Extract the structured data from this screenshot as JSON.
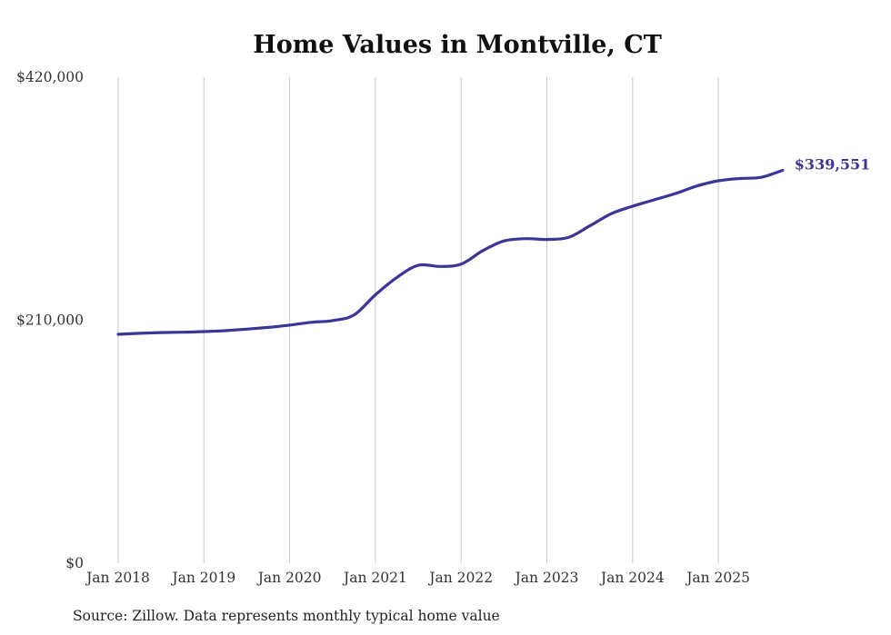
{
  "title": "Home Values in Montville, CT",
  "source_note": "Source: Zillow. Data represents monthly typical home value",
  "colors": {
    "line": "#3a3597",
    "grid": "#c9c9c9",
    "axis_text": "#333333",
    "title_text": "#111111",
    "background": "#ffffff"
  },
  "chart_data": {
    "type": "line",
    "title": "Home Values in Montville, CT",
    "unit": "USD",
    "xlabel": "",
    "ylabel": "",
    "ylim": [
      0,
      420000
    ],
    "grid": "vertical-only",
    "legend": "none",
    "source": "Zillow",
    "yticks": [
      {
        "value": 0,
        "label": "$0"
      },
      {
        "value": 210000,
        "label": "$210,000"
      },
      {
        "value": 420000,
        "label": "$420,000"
      }
    ],
    "xticks": [
      {
        "x": 2018,
        "label": "Jan 2018"
      },
      {
        "x": 2019,
        "label": "Jan 2019"
      },
      {
        "x": 2020,
        "label": "Jan 2020"
      },
      {
        "x": 2021,
        "label": "Jan 2021"
      },
      {
        "x": 2022,
        "label": "Jan 2022"
      },
      {
        "x": 2023,
        "label": "Jan 2023"
      },
      {
        "x": 2024,
        "label": "Jan 2024"
      },
      {
        "x": 2025,
        "label": "Jan 2025"
      }
    ],
    "series": [
      {
        "name": "Monthly typical home value",
        "color": "#3a3597",
        "points": [
          {
            "x": 2018.0,
            "y": 197800
          },
          {
            "x": 2018.25,
            "y": 198700
          },
          {
            "x": 2018.5,
            "y": 199300
          },
          {
            "x": 2018.75,
            "y": 199600
          },
          {
            "x": 2019.0,
            "y": 200200
          },
          {
            "x": 2019.25,
            "y": 201000
          },
          {
            "x": 2019.5,
            "y": 202300
          },
          {
            "x": 2019.75,
            "y": 203800
          },
          {
            "x": 2020.0,
            "y": 205800
          },
          {
            "x": 2020.25,
            "y": 208200
          },
          {
            "x": 2020.5,
            "y": 209700
          },
          {
            "x": 2020.75,
            "y": 214500
          },
          {
            "x": 2021.0,
            "y": 232000
          },
          {
            "x": 2021.25,
            "y": 247000
          },
          {
            "x": 2021.5,
            "y": 257500
          },
          {
            "x": 2021.75,
            "y": 256500
          },
          {
            "x": 2022.0,
            "y": 258500
          },
          {
            "x": 2022.25,
            "y": 270000
          },
          {
            "x": 2022.5,
            "y": 278500
          },
          {
            "x": 2022.75,
            "y": 280500
          },
          {
            "x": 2023.0,
            "y": 279800
          },
          {
            "x": 2023.25,
            "y": 281500
          },
          {
            "x": 2023.5,
            "y": 291500
          },
          {
            "x": 2023.75,
            "y": 302000
          },
          {
            "x": 2024.0,
            "y": 308500
          },
          {
            "x": 2024.25,
            "y": 314000
          },
          {
            "x": 2024.5,
            "y": 319500
          },
          {
            "x": 2024.75,
            "y": 326000
          },
          {
            "x": 2025.0,
            "y": 330500
          },
          {
            "x": 2025.25,
            "y": 332500
          },
          {
            "x": 2025.5,
            "y": 333500
          },
          {
            "x": 2025.75,
            "y": 339551
          }
        ]
      }
    ],
    "end_annotation": {
      "label": "$339,551",
      "value": 339551,
      "x": 2025.75
    }
  }
}
